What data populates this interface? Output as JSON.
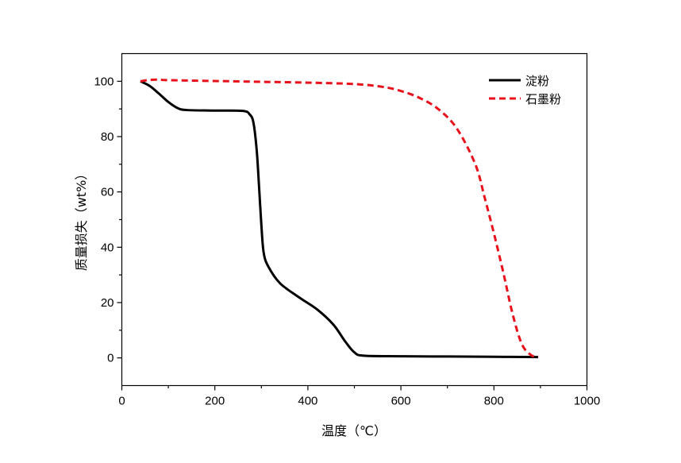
{
  "chart_data": {
    "type": "line",
    "xlabel": "温度（℃）",
    "ylabel": "质量损失（wt%）",
    "xlim": [
      0,
      1000
    ],
    "ylim": [
      -10,
      110
    ],
    "xticks": [
      0,
      200,
      400,
      600,
      800,
      1000
    ],
    "yticks": [
      0,
      20,
      40,
      60,
      80,
      100
    ],
    "x_minor_step": 100,
    "y_minor_step": 10,
    "grid": false,
    "legend_position": "top-right",
    "series": [
      {
        "name": "淀粉",
        "color": "#000000",
        "dash": "solid",
        "points": [
          [
            40,
            100
          ],
          [
            60,
            98.3
          ],
          [
            80,
            95.5
          ],
          [
            100,
            92.5
          ],
          [
            120,
            90.3
          ],
          [
            140,
            89.6
          ],
          [
            200,
            89.4
          ],
          [
            260,
            89.3
          ],
          [
            275,
            88
          ],
          [
            283,
            85
          ],
          [
            290,
            75
          ],
          [
            295,
            62
          ],
          [
            300,
            48
          ],
          [
            305,
            38
          ],
          [
            315,
            33
          ],
          [
            340,
            27
          ],
          [
            380,
            22
          ],
          [
            420,
            17.5
          ],
          [
            455,
            12
          ],
          [
            480,
            6
          ],
          [
            500,
            2
          ],
          [
            520,
            0.8
          ],
          [
            600,
            0.6
          ],
          [
            700,
            0.5
          ],
          [
            800,
            0.4
          ],
          [
            895,
            0.3
          ]
        ]
      },
      {
        "name": "石墨粉",
        "color": "#e8101a",
        "dash": "dashed",
        "points": [
          [
            40,
            100
          ],
          [
            60,
            100.5
          ],
          [
            80,
            100.6
          ],
          [
            100,
            100.4
          ],
          [
            200,
            100.1
          ],
          [
            300,
            99.8
          ],
          [
            400,
            99.5
          ],
          [
            500,
            99
          ],
          [
            560,
            98
          ],
          [
            600,
            96.5
          ],
          [
            640,
            94
          ],
          [
            680,
            90
          ],
          [
            720,
            83
          ],
          [
            760,
            70
          ],
          [
            780,
            58
          ],
          [
            800,
            45
          ],
          [
            820,
            31
          ],
          [
            840,
            16
          ],
          [
            860,
            5
          ],
          [
            880,
            1
          ],
          [
            895,
            0.3
          ]
        ]
      }
    ]
  }
}
